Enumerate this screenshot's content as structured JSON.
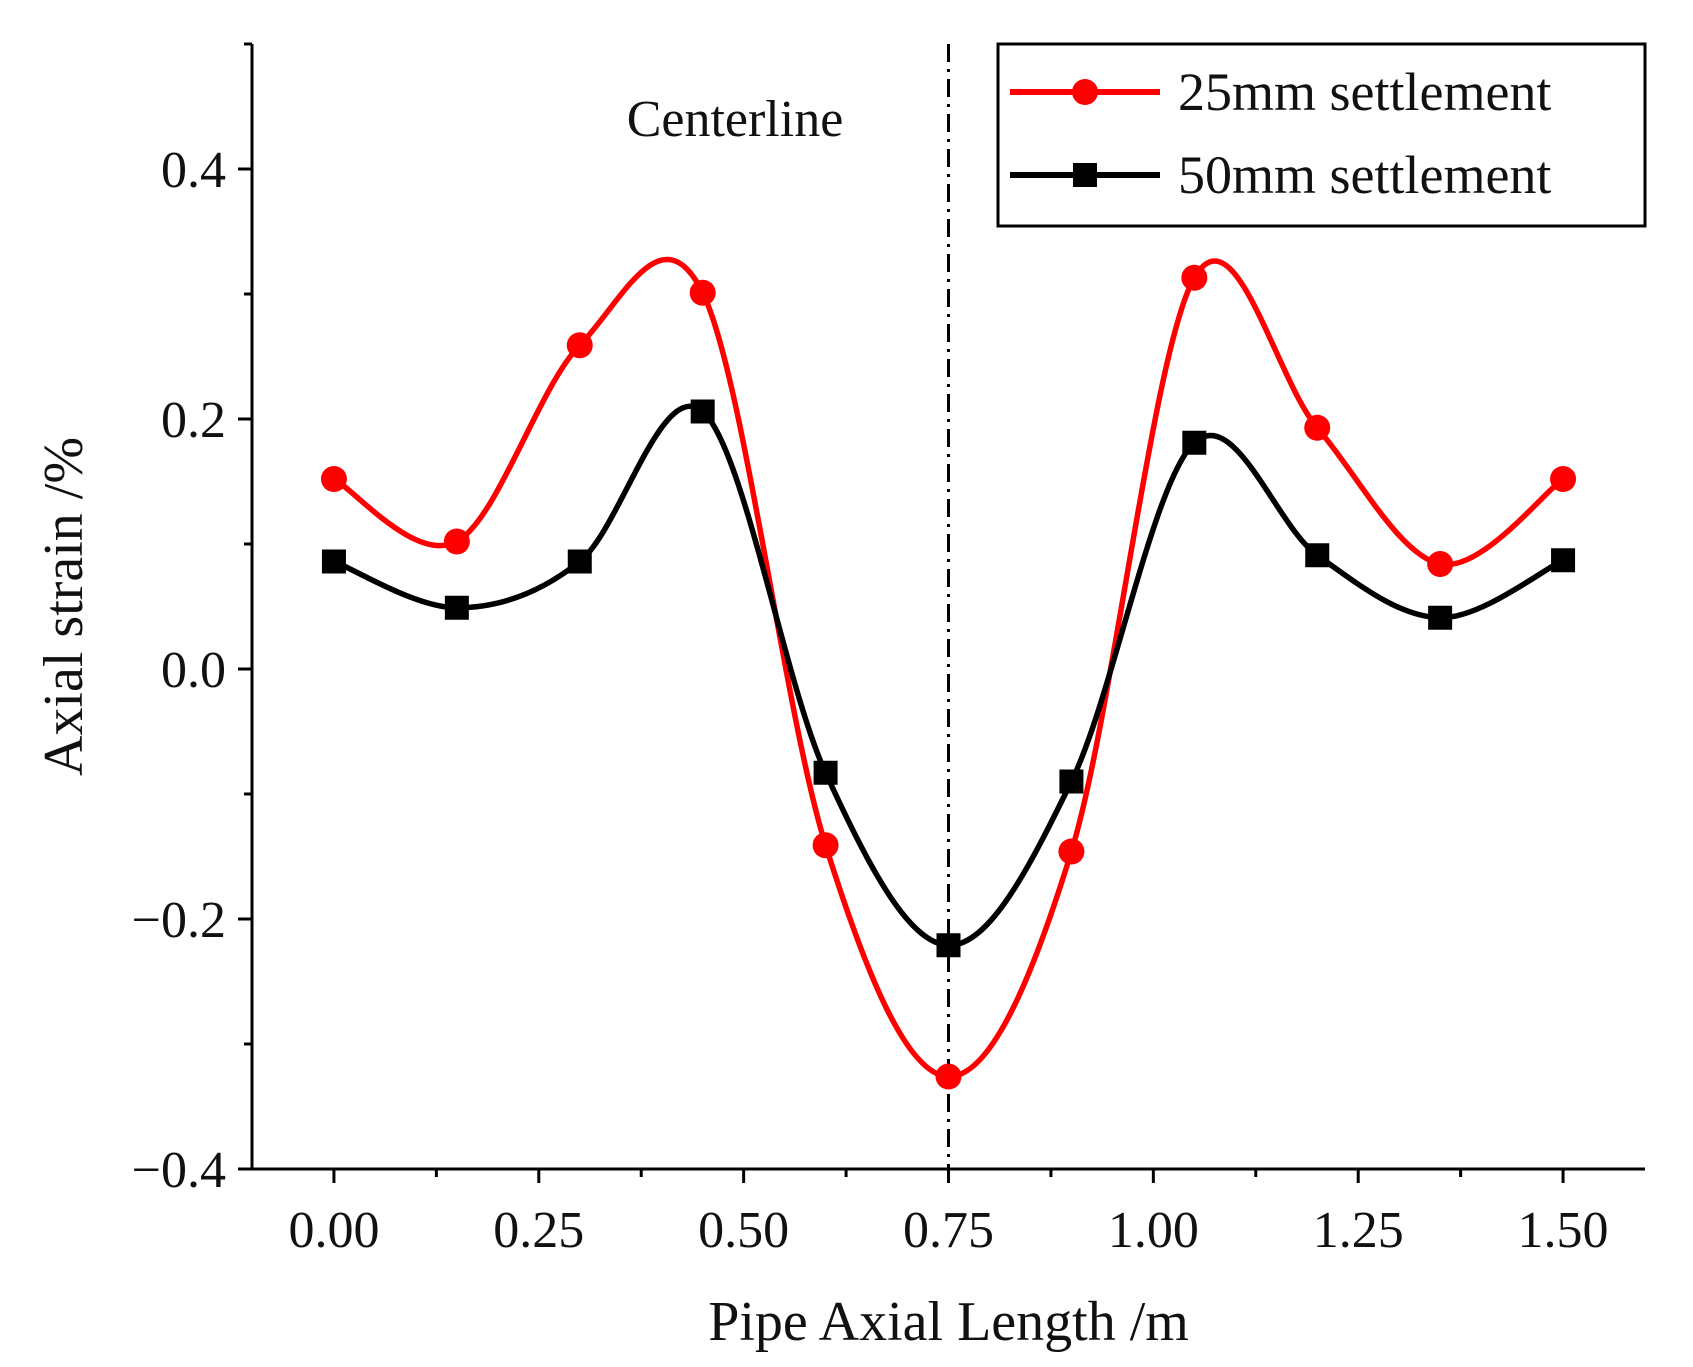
{
  "chart_data": {
    "type": "line",
    "xlabel": "Pipe Axial Length /m",
    "ylabel": "Axial strain /%",
    "xlim": [
      -0.1,
      1.6
    ],
    "ylim": [
      -0.4,
      0.5
    ],
    "xticks": [
      0.0,
      0.25,
      0.5,
      0.75,
      1.0,
      1.25,
      1.5
    ],
    "xtick_labels": [
      "0.00",
      "0.25",
      "0.50",
      "0.75",
      "1.00",
      "1.25",
      "1.50"
    ],
    "yticks": [
      -0.4,
      -0.2,
      0.0,
      0.2,
      0.4
    ],
    "ytick_labels": [
      "−0.4",
      "−0.2",
      "0.0",
      "0.2",
      "0.4"
    ],
    "x": [
      0.0,
      0.15,
      0.3,
      0.45,
      0.6,
      0.75,
      0.9,
      1.05,
      1.2,
      1.35,
      1.5
    ],
    "series": [
      {
        "name": "25mm settlement",
        "color": "#ff0000",
        "marker": "circle",
        "values": [
          0.152,
          0.102,
          0.259,
          0.301,
          -0.141,
          -0.326,
          -0.146,
          0.313,
          0.193,
          0.084,
          0.152
        ]
      },
      {
        "name": "50mm settlement",
        "color": "#000000",
        "marker": "square",
        "values": [
          0.086,
          0.049,
          0.086,
          0.206,
          -0.083,
          -0.221,
          -0.09,
          0.181,
          0.091,
          0.041,
          0.087
        ]
      }
    ],
    "annotations": [
      {
        "text": "Centerline",
        "x": 0.75,
        "style": "dash-dot vertical line"
      }
    ],
    "legend_position": "top-right",
    "grid": false
  }
}
